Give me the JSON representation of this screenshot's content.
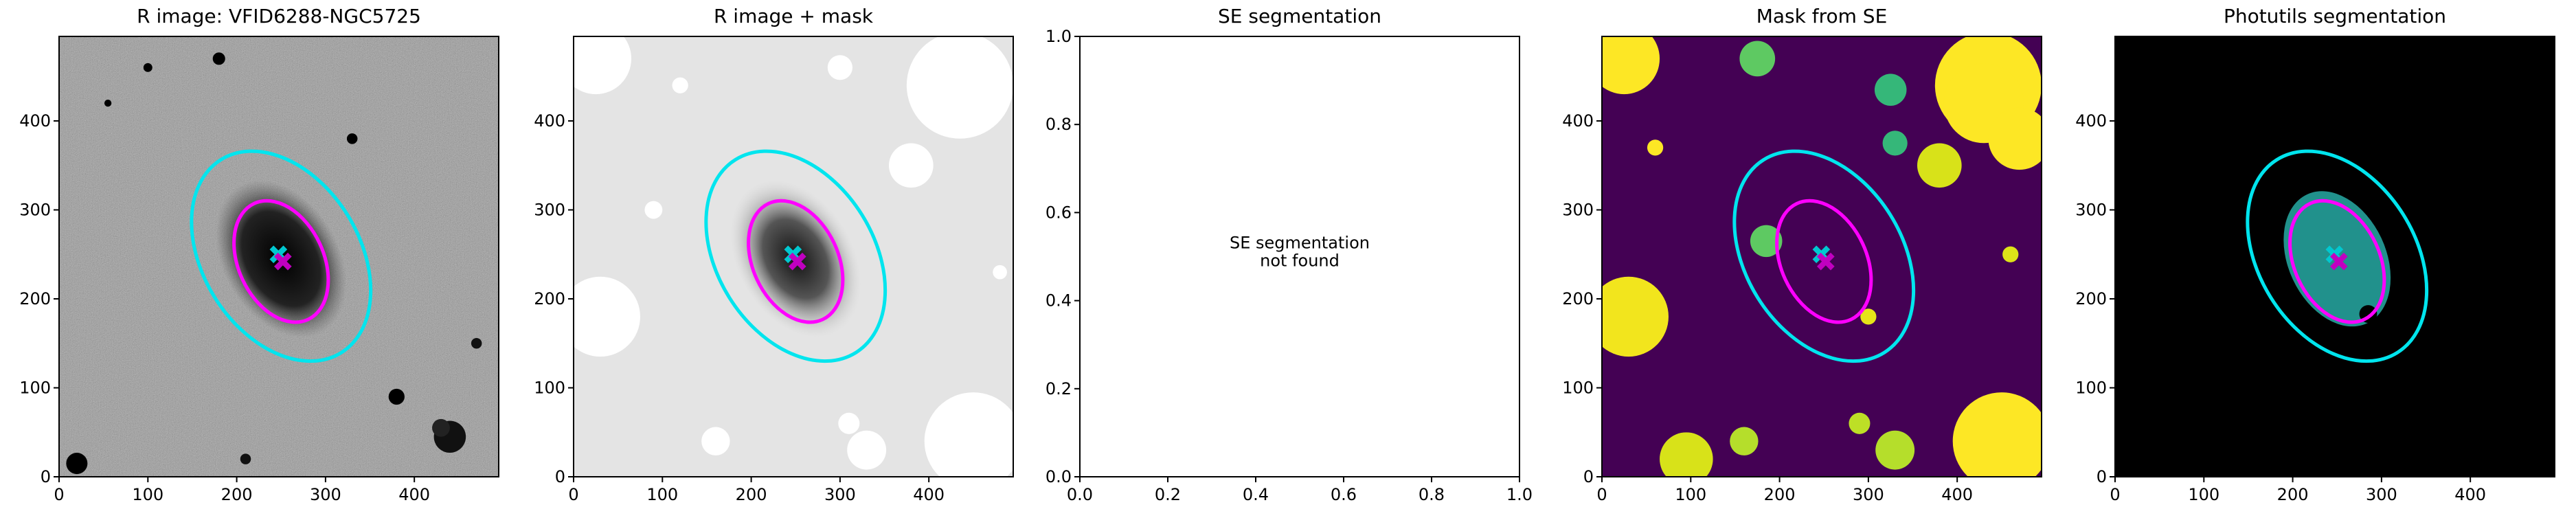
{
  "chart_data": [
    {
      "type": "image",
      "title": "R image: VFID6288-NGC5725",
      "xlim": [
        0,
        495
      ],
      "ylim": [
        0,
        495
      ],
      "xticks": [
        0,
        100,
        200,
        300,
        400
      ],
      "yticks": [
        0,
        100,
        200,
        300,
        400
      ],
      "ellipses": [
        {
          "color": "#00e5ee",
          "cx": 250,
          "cy": 248,
          "a": 128,
          "b": 88,
          "angle": 122
        },
        {
          "color": "#ff00ff",
          "cx": 250,
          "cy": 242,
          "a": 72,
          "b": 48,
          "angle": 115
        }
      ],
      "markers": [
        {
          "color": "#00c8d0",
          "x": 247,
          "y": 250
        },
        {
          "color": "#c000c0",
          "x": 252,
          "y": 242
        }
      ]
    },
    {
      "type": "image",
      "title": "R image + mask",
      "xlim": [
        0,
        495
      ],
      "ylim": [
        0,
        495
      ],
      "xticks": [
        0,
        100,
        200,
        300,
        400
      ],
      "yticks": [
        0,
        100,
        200,
        300,
        400
      ],
      "ellipses": [
        {
          "color": "#00e5ee",
          "cx": 250,
          "cy": 248,
          "a": 128,
          "b": 88,
          "angle": 122
        },
        {
          "color": "#ff00ff",
          "cx": 250,
          "cy": 242,
          "a": 72,
          "b": 48,
          "angle": 115
        }
      ],
      "markers": [
        {
          "color": "#00c8d0",
          "x": 247,
          "y": 250
        },
        {
          "color": "#c000c0",
          "x": 252,
          "y": 242
        }
      ]
    },
    {
      "type": "empty",
      "title": "SE segmentation",
      "annotation": "SE segmentation\nnot found",
      "xlim": [
        0,
        1
      ],
      "ylim": [
        0,
        1
      ],
      "xticks": [
        {
          "value": 0,
          "label": "0.0"
        },
        0.2,
        0.4,
        0.6,
        0.8,
        {
          "value": 1,
          "label": "1.0"
        }
      ],
      "yticks": [
        {
          "value": 0,
          "label": "0.0"
        },
        0.2,
        0.4,
        0.6,
        0.8,
        {
          "value": 1,
          "label": "1.0"
        }
      ]
    },
    {
      "type": "image",
      "title": "Mask from SE",
      "xlim": [
        0,
        495
      ],
      "ylim": [
        0,
        495
      ],
      "xticks": [
        0,
        100,
        200,
        300,
        400
      ],
      "yticks": [
        0,
        100,
        200,
        300,
        400
      ],
      "ellipses": [
        {
          "color": "#00e5ee",
          "cx": 250,
          "cy": 248,
          "a": 128,
          "b": 88,
          "angle": 122
        },
        {
          "color": "#ff00ff",
          "cx": 250,
          "cy": 242,
          "a": 72,
          "b": 48,
          "angle": 115
        }
      ],
      "markers": [
        {
          "color": "#00c8d0",
          "x": 247,
          "y": 250
        },
        {
          "color": "#c000c0",
          "x": 252,
          "y": 242
        }
      ]
    },
    {
      "type": "image",
      "title": "Photutils segmentation",
      "xlim": [
        0,
        495
      ],
      "ylim": [
        0,
        495
      ],
      "xticks": [
        0,
        100,
        200,
        300,
        400
      ],
      "yticks": [
        0,
        100,
        200,
        300,
        400
      ],
      "ellipses": [
        {
          "color": "#00e5ee",
          "cx": 250,
          "cy": 248,
          "a": 128,
          "b": 88,
          "angle": 122
        },
        {
          "color": "#ff00ff",
          "cx": 250,
          "cy": 242,
          "a": 72,
          "b": 48,
          "angle": 115
        }
      ],
      "markers": [
        {
          "color": "#00c8d0",
          "x": 247,
          "y": 250
        },
        {
          "color": "#c000c0",
          "x": 252,
          "y": 242
        }
      ]
    }
  ]
}
